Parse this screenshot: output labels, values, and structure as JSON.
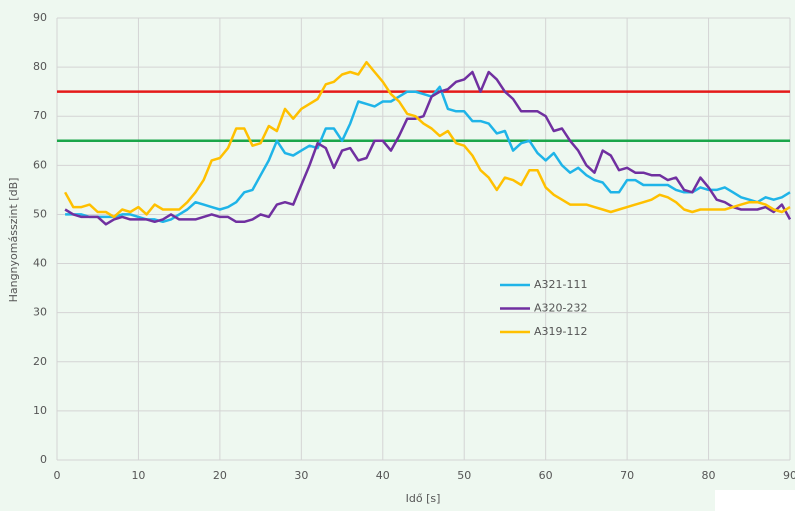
{
  "chart_data": {
    "type": "line",
    "xlabel": "Idő [s]",
    "ylabel": "Hangnyomásszint [dB]",
    "x": [
      1,
      2,
      3,
      4,
      5,
      6,
      7,
      8,
      9,
      10,
      11,
      12,
      13,
      14,
      15,
      16,
      17,
      18,
      19,
      20,
      21,
      22,
      23,
      24,
      25,
      26,
      27,
      28,
      29,
      30,
      31,
      32,
      33,
      34,
      35,
      36,
      37,
      38,
      39,
      40,
      41,
      42,
      43,
      44,
      45,
      46,
      47,
      48,
      49,
      50,
      51,
      52,
      53,
      54,
      55,
      56,
      57,
      58,
      59,
      60,
      61,
      62,
      63,
      64,
      65,
      66,
      67,
      68,
      69,
      70,
      71,
      72,
      73,
      74,
      75,
      76,
      77,
      78,
      79,
      80,
      81,
      82,
      83,
      84,
      85,
      86,
      87,
      88,
      89,
      90
    ],
    "series": [
      {
        "name": "A321-111",
        "color": "#1fb4e8",
        "values": [
          50,
          50,
          50,
          49.5,
          49.5,
          49.5,
          49.5,
          50,
          50,
          49.5,
          49,
          49,
          48.5,
          49,
          50,
          51,
          52.5,
          52,
          51.5,
          51,
          51.5,
          52.5,
          54.5,
          55,
          58,
          61,
          65,
          62.5,
          62,
          63,
          64,
          63.5,
          67.5,
          67.5,
          65,
          68.5,
          73,
          72.5,
          72,
          73,
          73,
          74,
          75,
          75,
          74.5,
          74,
          76,
          71.5,
          71,
          71,
          69,
          69,
          68.5,
          66.5,
          67,
          63,
          64.5,
          65,
          62.5,
          61,
          62.5,
          60,
          58.5,
          59.5,
          58,
          57,
          56.5,
          54.5,
          54.5,
          57,
          57,
          56,
          56,
          56,
          56,
          55,
          54.5,
          54.5,
          55.5,
          55,
          55,
          55.5,
          54.5,
          53.5,
          53,
          52.5,
          53.5,
          53,
          53.5,
          54.5
        ]
      },
      {
        "name": "A320-232",
        "color": "#7030a0",
        "values": [
          51,
          50,
          49.5,
          49.5,
          49.5,
          48,
          49,
          49.5,
          49,
          49,
          49,
          48.5,
          49,
          50,
          49,
          49,
          49,
          49.5,
          50,
          49.5,
          49.5,
          48.5,
          48.5,
          49,
          50,
          49.5,
          52,
          52.5,
          52,
          56,
          60,
          64.5,
          63.5,
          59.5,
          63,
          63.5,
          61,
          61.5,
          65,
          65,
          63,
          66,
          69.5,
          69.5,
          70,
          74,
          75,
          75.5,
          77,
          77.5,
          79,
          75,
          79,
          77.5,
          75,
          73.5,
          71,
          71,
          71,
          70,
          67,
          67.5,
          65,
          63,
          60,
          58.5,
          63,
          62,
          59,
          59.5,
          58.5,
          58.5,
          58,
          58,
          57,
          57.5,
          55,
          54.5,
          57.5,
          55.5,
          53,
          52.5,
          51.5,
          51,
          51,
          51,
          51.5,
          50.5,
          52,
          49
        ]
      },
      {
        "name": "A319-112",
        "color": "#ffc000",
        "values": [
          54.5,
          51.5,
          51.5,
          52,
          50.5,
          50.5,
          49.5,
          51,
          50.5,
          51.5,
          50,
          52,
          51,
          51,
          51,
          52.5,
          54.5,
          57,
          61,
          61.5,
          63.5,
          67.5,
          67.5,
          64,
          64.5,
          68,
          67,
          71.5,
          69.5,
          71.5,
          72.5,
          73.5,
          76.5,
          77,
          78.5,
          79,
          78.5,
          81,
          79,
          77,
          74.5,
          73,
          70.5,
          70,
          68.5,
          67.5,
          66,
          67,
          64.5,
          64,
          62,
          59,
          57.5,
          55,
          57.5,
          57,
          56,
          59,
          59,
          55.5,
          54,
          53,
          52,
          52,
          52,
          51.5,
          51,
          50.5,
          51,
          51.5,
          52,
          52.5,
          53,
          54,
          53.5,
          52.5,
          51,
          50.5,
          51,
          51,
          51,
          51,
          51.5,
          52,
          52.5,
          52.5,
          52,
          51,
          50.5,
          51.5
        ]
      }
    ],
    "reference_lines": [
      {
        "value": 75,
        "color": "#e41a1a"
      },
      {
        "value": 65,
        "color": "#1aa64a"
      }
    ],
    "xlim": [
      0,
      90
    ],
    "xticks": [
      0,
      10,
      20,
      30,
      40,
      50,
      60,
      70,
      80,
      90
    ],
    "ylim": [
      0,
      90
    ],
    "yticks": [
      0,
      10,
      20,
      30,
      40,
      50,
      60,
      70,
      80,
      90
    ],
    "grid": true,
    "legend": "right"
  }
}
